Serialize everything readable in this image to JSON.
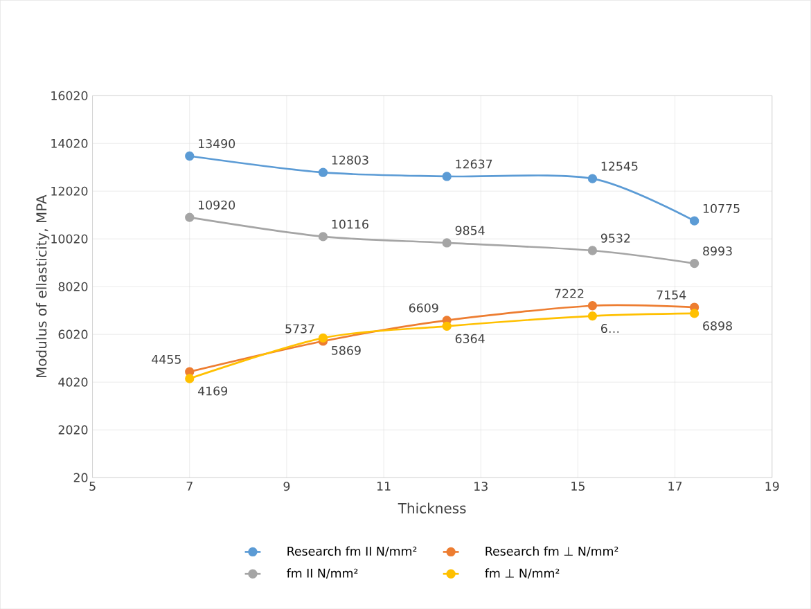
{
  "chart_data": {
    "type": "line",
    "xlabel": "Thickness",
    "ylabel": "Modulus of ellasticity, MPA",
    "x": [
      7,
      9.75,
      12.3,
      15.3,
      17.4
    ],
    "series": [
      {
        "name": "Research fm II N/mm²",
        "color": "#5b9bd5",
        "values": [
          13490,
          12803,
          12637,
          12545,
          10775
        ],
        "value_labels": [
          "13490",
          "12803",
          "12637",
          "12545",
          "10775"
        ]
      },
      {
        "name": "Research fm ⊥ N/mm²",
        "color": "#ed7d31",
        "values": [
          4455,
          5737,
          6609,
          7222,
          7154
        ],
        "value_labels": [
          "4455",
          "5737",
          "6609",
          "7222",
          "7154"
        ]
      },
      {
        "name": "fm II N/mm²",
        "color": "#a5a5a5",
        "values": [
          10920,
          10116,
          9854,
          9532,
          8993
        ],
        "value_labels": [
          "10920",
          "10116",
          "9854",
          "9532",
          "8993"
        ]
      },
      {
        "name": "fm ⊥ N/mm²",
        "color": "#ffc000",
        "values": [
          4169,
          5869,
          6364,
          6790,
          6898
        ],
        "value_labels": [
          "4169",
          "5869",
          "6364",
          "6…",
          "6898"
        ]
      }
    ],
    "xlim": [
      5,
      19
    ],
    "xticks": [
      5,
      7,
      9,
      11,
      13,
      15,
      17,
      19
    ],
    "ylim": [
      20,
      16020
    ],
    "yticks": [
      20,
      2020,
      4020,
      6020,
      8020,
      10020,
      12020,
      14020,
      16020
    ],
    "grid": true,
    "legend": "bottom",
    "marker": "circle",
    "line_style": "solid"
  }
}
